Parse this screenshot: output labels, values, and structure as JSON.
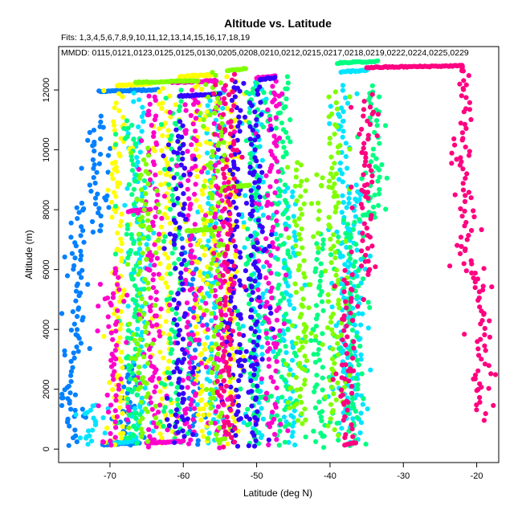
{
  "chart_data": {
    "type": "scatter",
    "title": "Altitude vs. Latitude",
    "subtitle": "Fits: 1,3,4,5,6,7,8,9,10,11,12,13,14,15,16,17,18,19",
    "annotation": "MMDD: 0115,0121,0123,0125,0125,0130,0205,0208,0210,0212,0215,0217,0218,0219,0222,0224,0225,0229",
    "xlabel": "Latitude (deg N)",
    "ylabel": "Altitude (m)",
    "xlim": [
      -77,
      -17
    ],
    "ylim": [
      -450,
      13450
    ],
    "xticks": [
      -70,
      -60,
      -50,
      -40,
      -30,
      -20
    ],
    "yticks": [
      0,
      2000,
      4000,
      6000,
      8000,
      10000,
      12000
    ],
    "grid": false,
    "colors": [
      "#0080ff",
      "#00e5ff",
      "#ffff00",
      "#00ff80",
      "#ff00cc",
      "#3300ff",
      "#80ff00",
      "#ff0080"
    ],
    "series": [
      {
        "color": "#0080ff",
        "vertical": [
          {
            "lat": -75.3,
            "alt_min": 100,
            "alt_max": 2400
          },
          {
            "lat": -74.5,
            "alt_min": 2600,
            "alt_max": 8200
          },
          {
            "lat": -72.0,
            "alt_min": 7200,
            "alt_max": 11100
          },
          {
            "lat": -67.5,
            "alt_min": 100,
            "alt_max": 2900
          },
          {
            "lat": -58.5,
            "alt_min": 100,
            "alt_max": 7300
          }
        ],
        "horizontal": [
          {
            "lat_min": -71.5,
            "lat_max": -63.5,
            "alt": 11950
          },
          {
            "lat_min": -71.0,
            "lat_max": -66.0,
            "alt": 150
          }
        ]
      },
      {
        "color": "#00e5ff",
        "vertical": [
          {
            "lat": -72.5,
            "alt_min": 150,
            "alt_max": 1500
          },
          {
            "lat": -66.0,
            "alt_min": 200,
            "alt_max": 11900
          },
          {
            "lat": -56.0,
            "alt_min": 200,
            "alt_max": 11800
          },
          {
            "lat": -49.8,
            "alt_min": 200,
            "alt_max": 12300
          },
          {
            "lat": -45.5,
            "alt_min": 100,
            "alt_max": 8700
          },
          {
            "lat": -38.0,
            "alt_min": 500,
            "alt_max": 12100
          },
          {
            "lat": -36.5,
            "alt_min": 200,
            "alt_max": 8800
          }
        ],
        "horizontal": [
          {
            "lat_min": -38.5,
            "lat_max": -35.0,
            "alt": 12600
          },
          {
            "lat_min": -56.5,
            "lat_max": -54.5,
            "alt": 11850
          },
          {
            "lat_min": -70.0,
            "lat_max": -67.0,
            "alt": 200
          }
        ]
      },
      {
        "color": "#ffff00",
        "vertical": [
          {
            "lat": -69.0,
            "alt_min": 200,
            "alt_max": 12100
          },
          {
            "lat": -62.5,
            "alt_min": 200,
            "alt_max": 12100
          },
          {
            "lat": -57.5,
            "alt_min": 300,
            "alt_max": 12300
          },
          {
            "lat": -53.5,
            "alt_min": 200,
            "alt_max": 12400
          }
        ],
        "horizontal": [
          {
            "lat_min": -69.0,
            "lat_max": -64.5,
            "alt": 12150
          },
          {
            "lat_min": -60.5,
            "lat_max": -56.0,
            "alt": 12450
          }
        ]
      },
      {
        "color": "#00ff80",
        "vertical": [
          {
            "lat": -67.0,
            "alt_min": 150,
            "alt_max": 11000
          },
          {
            "lat": -61.0,
            "alt_min": 200,
            "alt_max": 12000
          },
          {
            "lat": -50.5,
            "alt_min": 150,
            "alt_max": 12400
          },
          {
            "lat": -46.5,
            "alt_min": 100,
            "alt_max": 12400
          },
          {
            "lat": -41.5,
            "alt_min": 100,
            "alt_max": 7200
          },
          {
            "lat": -34.0,
            "alt_min": 7800,
            "alt_max": 12100
          },
          {
            "lat": -36.8,
            "alt_min": 100,
            "alt_max": 7700
          }
        ],
        "horizontal": [
          {
            "lat_min": -39.0,
            "lat_max": -33.5,
            "alt": 12900
          },
          {
            "lat_min": -35.5,
            "lat_max": -34.0,
            "alt": 7800
          },
          {
            "lat_min": -50.5,
            "lat_max": -48.0,
            "alt": 1700
          }
        ]
      },
      {
        "color": "#ff00cc",
        "vertical": [
          {
            "lat": -69.5,
            "alt_min": 100,
            "alt_max": 6000
          },
          {
            "lat": -64.0,
            "alt_min": 100,
            "alt_max": 11800
          },
          {
            "lat": -59.0,
            "alt_min": 200,
            "alt_max": 12000
          },
          {
            "lat": -55.0,
            "alt_min": 100,
            "alt_max": 12100
          },
          {
            "lat": -48.0,
            "alt_min": 200,
            "alt_max": 12300
          }
        ],
        "horizontal": [
          {
            "lat_min": -67.5,
            "lat_max": -64.5,
            "alt": 7950
          },
          {
            "lat_min": -65.0,
            "lat_max": -60.0,
            "alt": 200
          },
          {
            "lat_min": -50.0,
            "lat_max": -47.5,
            "alt": 12400
          },
          {
            "lat_min": -61.5,
            "lat_max": -55.5,
            "alt": 12250
          }
        ]
      },
      {
        "color": "#3300ff",
        "vertical": [
          {
            "lat": -60.5,
            "alt_min": 200,
            "alt_max": 11000
          },
          {
            "lat": -53.0,
            "alt_min": 100,
            "alt_max": 12300
          },
          {
            "lat": -50.0,
            "alt_min": 100,
            "alt_max": 12300
          }
        ],
        "horizontal": [
          {
            "lat_min": -60.5,
            "lat_max": -55.0,
            "alt": 11800
          },
          {
            "lat_min": -49.5,
            "lat_max": -47.5,
            "alt": 12350
          }
        ]
      },
      {
        "color": "#80ff00",
        "vertical": [
          {
            "lat": -65.5,
            "alt_min": 200,
            "alt_max": 10000
          },
          {
            "lat": -55.5,
            "alt_min": 200,
            "alt_max": 12600
          },
          {
            "lat": -44.0,
            "alt_min": 800,
            "alt_max": 9600
          },
          {
            "lat": -39.5,
            "alt_min": 500,
            "alt_max": 11900
          }
        ],
        "horizontal": [
          {
            "lat_min": -66.5,
            "lat_max": -58.0,
            "alt": 12250
          },
          {
            "lat_min": -54.0,
            "lat_max": -51.5,
            "alt": 12650
          },
          {
            "lat_min": -59.5,
            "lat_max": -55.0,
            "alt": 7300
          },
          {
            "lat_min": -54.5,
            "lat_max": -51.0,
            "alt": 8750
          }
        ]
      },
      {
        "color": "#ff0080",
        "vertical": [
          {
            "lat": -53.8,
            "alt_min": 100,
            "alt_max": 12500
          },
          {
            "lat": -37.5,
            "alt_min": 200,
            "alt_max": 6000
          },
          {
            "lat": -35.0,
            "alt_min": 5800,
            "alt_max": 11800
          },
          {
            "lat": -21.5,
            "alt_min": 6000,
            "alt_max": 12800
          },
          {
            "lat": -19.5,
            "alt_min": 1000,
            "alt_max": 6000
          }
        ],
        "horizontal": [
          {
            "lat_min": -35.0,
            "lat_max": -22.0,
            "alt": 12750
          },
          {
            "lat_min": -38.0,
            "lat_max": -36.5,
            "alt": 150
          }
        ]
      }
    ]
  }
}
